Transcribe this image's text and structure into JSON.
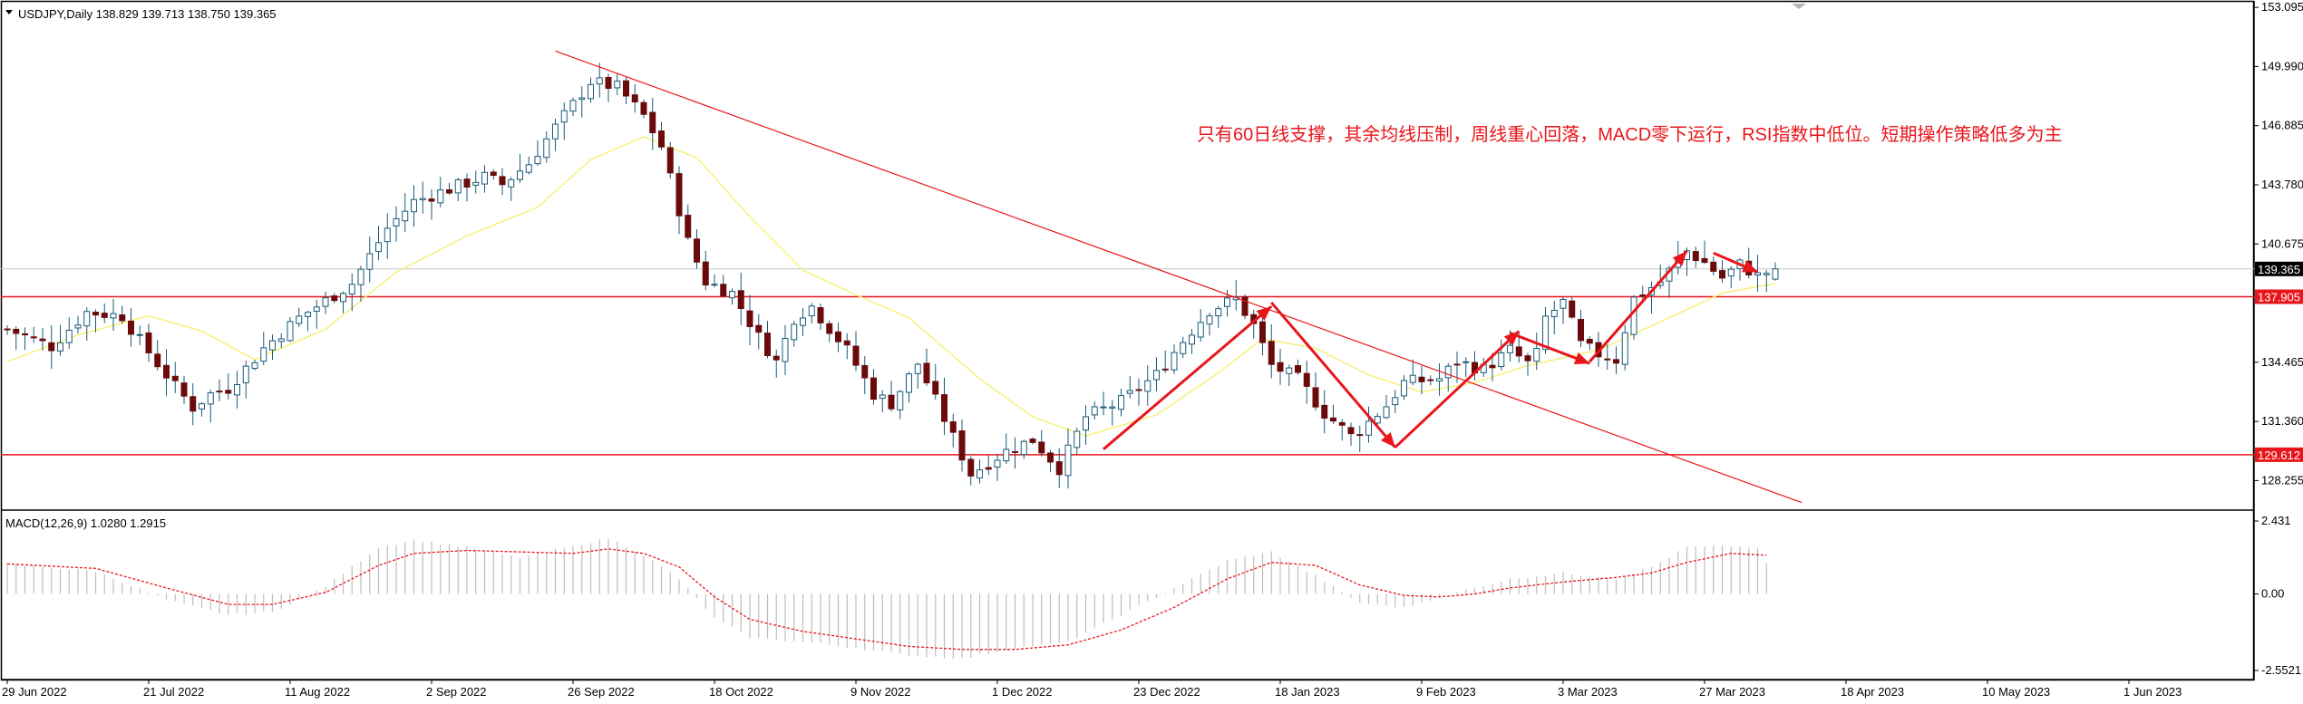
{
  "header": {
    "symbol_line": "USDJPY,Daily  138.829 139.713 138.750 139.365"
  },
  "annotation": "只有60日线支撑，其余均线压制，周线重心回落，MACD零下运行，RSI指数中低位。短期操作策略低多为主",
  "colors": {
    "bull_candle": "#ffffff",
    "bear_candle": "#6a0a0a",
    "candle_outline": "#1a5a78",
    "ma": "#f7f07a",
    "horizontal_line": "#e8161b",
    "trend_line": "#e8161b",
    "arrow": "#e8161b",
    "price_tag_bg": "#000000",
    "level_tag_bg": "#e8161b",
    "macd_hist": "#bdbdbd",
    "macd_signal": "#e8161b"
  },
  "chart_data": [
    {
      "type": "candlestick",
      "title": "USDJPY,Daily",
      "ohlc_last": {
        "open": 138.829,
        "high": 139.713,
        "low": 138.75,
        "close": 139.365
      },
      "ylim": [
        126.8,
        153.1
      ],
      "y_ticks": [
        "153.095",
        "149.990",
        "146.885",
        "143.780",
        "140.675",
        "134.465",
        "131.360",
        "128.255"
      ],
      "price_tag": "139.365",
      "levels": [
        {
          "value": 137.905,
          "label": "137.905"
        },
        {
          "value": 129.612,
          "label": "129.612"
        }
      ],
      "grid_line": 139.365,
      "x_ticks": [
        "29 Jun 2022",
        "21 Jul 2022",
        "11 Aug 2022",
        "2 Sep 2022",
        "26 Sep 2022",
        "18 Oct 2022",
        "9 Nov 2022",
        "1 Dec 2022",
        "23 Dec 2022",
        "18 Jan 2023",
        "9 Feb 2023",
        "3 Mar 2023",
        "27 Mar 2023",
        "18 Apr 2023",
        "10 May 2023",
        "1 Jun 2023"
      ],
      "close_path": [
        [
          0,
          136.2
        ],
        [
          5,
          135.3
        ],
        [
          9,
          137.1
        ],
        [
          13,
          136.9
        ],
        [
          15,
          135.6
        ],
        [
          19,
          133.2
        ],
        [
          21,
          132.1
        ],
        [
          23,
          132.8
        ],
        [
          25,
          133.1
        ],
        [
          29,
          135.2
        ],
        [
          33,
          136.8
        ],
        [
          39,
          138.6
        ],
        [
          43,
          141.5
        ],
        [
          46,
          142.9
        ],
        [
          49,
          143.4
        ],
        [
          54,
          144.2
        ],
        [
          56,
          143.8
        ],
        [
          59,
          144.9
        ],
        [
          62,
          146.8
        ],
        [
          66,
          149.2
        ],
        [
          69,
          148.9
        ],
        [
          72,
          147.4
        ],
        [
          74,
          145.8
        ],
        [
          77,
          140.8
        ],
        [
          79,
          138.7
        ],
        [
          82,
          138.1
        ],
        [
          85,
          135.8
        ],
        [
          87,
          134.5
        ],
        [
          89,
          136.8
        ],
        [
          91,
          137.4
        ],
        [
          95,
          135.1
        ],
        [
          98,
          132.8
        ],
        [
          100,
          132.3
        ],
        [
          103,
          134.4
        ],
        [
          106,
          131.5
        ],
        [
          109,
          128.6
        ],
        [
          113,
          129.8
        ],
        [
          116,
          130.4
        ],
        [
          119,
          128.9
        ],
        [
          122,
          131.6
        ],
        [
          126,
          132.4
        ],
        [
          130,
          133.8
        ],
        [
          133,
          135.6
        ],
        [
          136,
          137.2
        ],
        [
          139,
          137.8
        ],
        [
          141,
          136.4
        ],
        [
          143,
          134.3
        ],
        [
          146,
          133.6
        ],
        [
          149,
          131.8
        ],
        [
          152,
          130.6
        ],
        [
          153,
          130.9
        ],
        [
          156,
          132.2
        ],
        [
          158,
          133.4
        ],
        [
          162,
          133.6
        ],
        [
          164,
          134.5
        ],
        [
          167,
          134.1
        ],
        [
          170,
          135.1
        ],
        [
          172,
          134.4
        ],
        [
          173,
          134.9
        ],
        [
          174,
          136.8
        ],
        [
          176,
          137.6
        ],
        [
          177,
          136.5
        ],
        [
          178,
          135.4
        ],
        [
          180,
          134.9
        ],
        [
          182,
          134.6
        ],
        [
          184,
          137.8
        ],
        [
          187,
          138.7
        ],
        [
          189,
          139.8
        ],
        [
          190,
          140.3
        ],
        [
          192,
          139.7
        ],
        [
          194,
          138.9
        ],
        [
          196,
          139.6
        ],
        [
          198,
          139.0
        ],
        [
          200,
          139.365
        ]
      ],
      "ma_path": [
        [
          0,
          134.5
        ],
        [
          8,
          135.9
        ],
        [
          16,
          136.9
        ],
        [
          22,
          136.1
        ],
        [
          28,
          134.6
        ],
        [
          36,
          136.2
        ],
        [
          44,
          139.2
        ],
        [
          52,
          141.1
        ],
        [
          60,
          142.6
        ],
        [
          66,
          145.1
        ],
        [
          72,
          146.3
        ],
        [
          78,
          145.2
        ],
        [
          84,
          142.1
        ],
        [
          90,
          139.3
        ],
        [
          96,
          138.0
        ],
        [
          102,
          136.8
        ],
        [
          110,
          133.6
        ],
        [
          116,
          131.6
        ],
        [
          122,
          130.6
        ],
        [
          130,
          131.7
        ],
        [
          137,
          133.9
        ],
        [
          142,
          135.7
        ],
        [
          148,
          135.2
        ],
        [
          154,
          133.8
        ],
        [
          160,
          132.9
        ],
        [
          166,
          133.4
        ],
        [
          172,
          134.3
        ],
        [
          180,
          135.1
        ],
        [
          188,
          136.8
        ],
        [
          194,
          138.1
        ],
        [
          200,
          138.6
        ]
      ],
      "trend_line": [
        [
          62,
          150.8
        ],
        [
          203,
          127.1
        ]
      ],
      "arrows": [
        [
          [
            124,
            129.9
          ],
          [
            143,
            137.4
          ]
        ],
        [
          [
            143,
            137.6
          ],
          [
            157,
            130.0
          ]
        ],
        [
          [
            157,
            130.0
          ],
          [
            171,
            136.1
          ]
        ],
        [
          [
            170,
            136.0
          ],
          [
            179,
            134.4
          ]
        ],
        [
          [
            179,
            134.5
          ],
          [
            190,
            140.3
          ]
        ],
        [
          [
            193,
            140.2
          ],
          [
            198,
            139.2
          ]
        ]
      ]
    },
    {
      "type": "bar",
      "title": "MACD(12,26,9) 1.0280 1.2915",
      "ylim": [
        -2.5521,
        2.431
      ],
      "y_ticks": [
        "2.431",
        "0.00",
        "-2.5521"
      ],
      "histogram": [
        [
          0,
          1.0
        ],
        [
          10,
          0.75
        ],
        [
          18,
          -0.2
        ],
        [
          25,
          -0.7
        ],
        [
          30,
          -0.6
        ],
        [
          36,
          0.25
        ],
        [
          42,
          1.55
        ],
        [
          46,
          1.8
        ],
        [
          52,
          1.55
        ],
        [
          58,
          1.2
        ],
        [
          64,
          1.6
        ],
        [
          68,
          1.85
        ],
        [
          72,
          1.3
        ],
        [
          76,
          0.5
        ],
        [
          80,
          -0.8
        ],
        [
          84,
          -1.45
        ],
        [
          90,
          -1.6
        ],
        [
          96,
          -1.8
        ],
        [
          102,
          -2.05
        ],
        [
          108,
          -2.15
        ],
        [
          114,
          -1.8
        ],
        [
          120,
          -1.6
        ],
        [
          126,
          -0.7
        ],
        [
          132,
          0.2
        ],
        [
          138,
          1.1
        ],
        [
          143,
          1.4
        ],
        [
          148,
          0.6
        ],
        [
          153,
          -0.3
        ],
        [
          158,
          -0.45
        ],
        [
          162,
          -0.1
        ],
        [
          166,
          0.2
        ],
        [
          170,
          0.5
        ],
        [
          176,
          0.7
        ],
        [
          182,
          0.5
        ],
        [
          186,
          0.9
        ],
        [
          190,
          1.55
        ],
        [
          195,
          1.6
        ],
        [
          198,
          1.5
        ],
        [
          199,
          1.03
        ]
      ],
      "signal": [
        [
          0,
          1.0
        ],
        [
          10,
          0.85
        ],
        [
          18,
          0.2
        ],
        [
          25,
          -0.35
        ],
        [
          30,
          -0.35
        ],
        [
          36,
          0.05
        ],
        [
          42,
          0.95
        ],
        [
          46,
          1.35
        ],
        [
          52,
          1.45
        ],
        [
          58,
          1.4
        ],
        [
          64,
          1.35
        ],
        [
          68,
          1.5
        ],
        [
          72,
          1.35
        ],
        [
          76,
          0.9
        ],
        [
          80,
          -0.1
        ],
        [
          84,
          -0.85
        ],
        [
          90,
          -1.25
        ],
        [
          96,
          -1.5
        ],
        [
          102,
          -1.75
        ],
        [
          108,
          -1.85
        ],
        [
          114,
          -1.85
        ],
        [
          120,
          -1.7
        ],
        [
          126,
          -1.2
        ],
        [
          132,
          -0.45
        ],
        [
          138,
          0.5
        ],
        [
          143,
          1.05
        ],
        [
          148,
          0.95
        ],
        [
          153,
          0.3
        ],
        [
          158,
          -0.05
        ],
        [
          162,
          -0.1
        ],
        [
          166,
          0.0
        ],
        [
          170,
          0.2
        ],
        [
          176,
          0.4
        ],
        [
          182,
          0.55
        ],
        [
          186,
          0.7
        ],
        [
          190,
          1.05
        ],
        [
          195,
          1.35
        ],
        [
          199,
          1.29
        ]
      ]
    }
  ]
}
